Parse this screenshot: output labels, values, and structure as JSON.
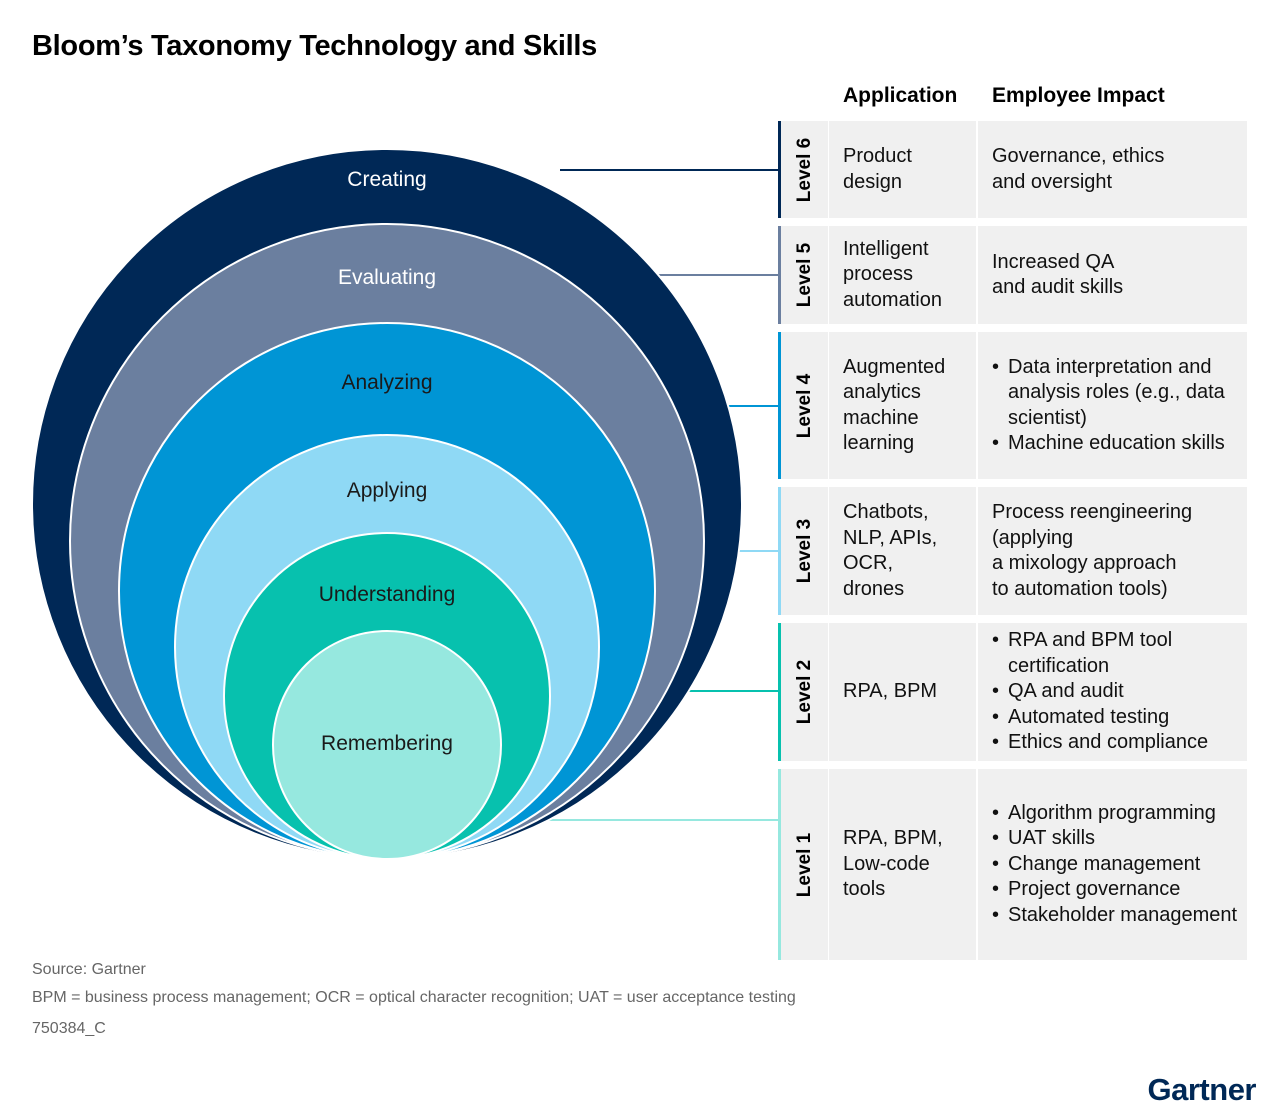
{
  "title": "Bloom’s Taxonomy Technology and Skills",
  "circles": [
    {
      "label": "Creating",
      "color": "#002856",
      "text_color": "#ffffff"
    },
    {
      "label": "Evaluating",
      "color": "#6b7f9f",
      "text_color": "#ffffff"
    },
    {
      "label": "Analyzing",
      "color": "#0095d5",
      "text_color": "#1a1a1a"
    },
    {
      "label": "Applying",
      "color": "#8fd9f5",
      "text_color": "#1a1a1a"
    },
    {
      "label": "Understanding",
      "color": "#07c1ae",
      "text_color": "#1a1a1a"
    },
    {
      "label": "Remembering",
      "color": "#96e8df",
      "text_color": "#1a1a1a"
    }
  ],
  "table": {
    "header_application": "Application",
    "header_impact": "Employee Impact",
    "rows": [
      {
        "level": "Level 6",
        "color": "#002856",
        "application": "Product\ndesign",
        "impact_text": "Governance, ethics\nand oversight"
      },
      {
        "level": "Level 5",
        "color": "#6b7f9f",
        "application": "Intelligent\nprocess\nautomation",
        "impact_text": "Increased QA\nand audit skills"
      },
      {
        "level": "Level 4",
        "color": "#0095d5",
        "application": "Augmented\nanalytics\nmachine\nlearning",
        "impact_bullets": [
          "Data interpretation and analysis roles (e.g., data scientist)",
          "Machine education skills"
        ]
      },
      {
        "level": "Level 3",
        "color": "#8fd9f5",
        "application": "Chatbots,\nNLP, APIs,\nOCR,\ndrones",
        "impact_text": "Process reengineering\n(applying\na mixology approach\nto automation tools)"
      },
      {
        "level": "Level 2",
        "color": "#07c1ae",
        "application": "RPA, BPM",
        "impact_bullets": [
          "RPA and BPM tool certification",
          "QA and audit",
          "Automated testing",
          "Ethics and compliance"
        ]
      },
      {
        "level": "Level 1",
        "color": "#96e8df",
        "application": "RPA, BPM,\nLow-code\ntools",
        "impact_bullets": [
          "Algorithm programming",
          "UAT skills",
          "Change management",
          "Project governance",
          "Stakeholder management"
        ]
      }
    ]
  },
  "footer": {
    "source": "Source: Gartner",
    "note": "BPM = business process management; OCR = optical character recognition; UAT = user acceptance testing",
    "code": "750384_C"
  },
  "logo": "Gartner"
}
